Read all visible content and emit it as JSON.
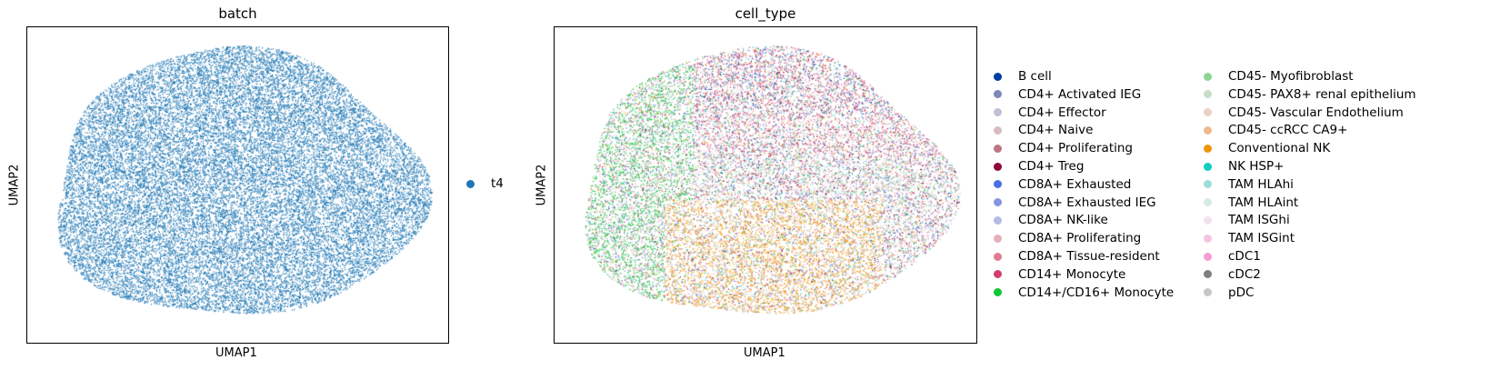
{
  "chart_data": [
    {
      "type": "scatter",
      "title": "batch",
      "xlabel": "UMAP1",
      "ylabel": "UMAP2",
      "xticks": false,
      "yticks": false,
      "legend_placement": "right",
      "series": [
        {
          "name": "t4",
          "color": "#1f77b4"
        }
      ]
    },
    {
      "type": "scatter",
      "title": "cell_type",
      "xlabel": "UMAP1",
      "ylabel": "UMAP2",
      "xticks": false,
      "yticks": false,
      "legend_placement": "right",
      "legend_columns": 2,
      "series": [
        {
          "name": "B cell",
          "color": "#023fa5"
        },
        {
          "name": "CD4+ Activated IEG",
          "color": "#7d87b9"
        },
        {
          "name": "CD4+ Effector",
          "color": "#bec1d4"
        },
        {
          "name": "CD4+ Naive",
          "color": "#d6bcc0"
        },
        {
          "name": "CD4+ Proliferating",
          "color": "#bb7784"
        },
        {
          "name": "CD4+ Treg",
          "color": "#8e063b"
        },
        {
          "name": "CD8A+ Exhausted",
          "color": "#4a6fe3"
        },
        {
          "name": "CD8A+ Exhausted IEG",
          "color": "#8595e1"
        },
        {
          "name": "CD8A+ NK-like",
          "color": "#b5bbe3"
        },
        {
          "name": "CD8A+ Proliferating",
          "color": "#e6afb9"
        },
        {
          "name": "CD8A+ Tissue-resident",
          "color": "#e07b91"
        },
        {
          "name": "CD14+ Monocyte",
          "color": "#d33f6a"
        },
        {
          "name": "CD14+/CD16+ Monocyte",
          "color": "#11c638"
        },
        {
          "name": "CD45- Myofibroblast",
          "color": "#8dd593"
        },
        {
          "name": "CD45- PAX8+ renal epithelium",
          "color": "#c6dec7"
        },
        {
          "name": "CD45- Vascular Endothelium",
          "color": "#ead3c6"
        },
        {
          "name": "CD45- ccRCC CA9+",
          "color": "#f0b98d"
        },
        {
          "name": "Conventional NK",
          "color": "#ef9708"
        },
        {
          "name": "NK HSP+",
          "color": "#0fcfc0"
        },
        {
          "name": "TAM HLAhi",
          "color": "#9cded6"
        },
        {
          "name": "TAM HLAint",
          "color": "#d5eae7"
        },
        {
          "name": "TAM ISGhi",
          "color": "#f3e1eb"
        },
        {
          "name": "TAM ISGint",
          "color": "#f6c4e1"
        },
        {
          "name": "cDC1",
          "color": "#f79cd4"
        },
        {
          "name": "cDC2",
          "color": "#7f7f7f"
        },
        {
          "name": "pDC",
          "color": "#c7c7c7"
        }
      ]
    }
  ]
}
